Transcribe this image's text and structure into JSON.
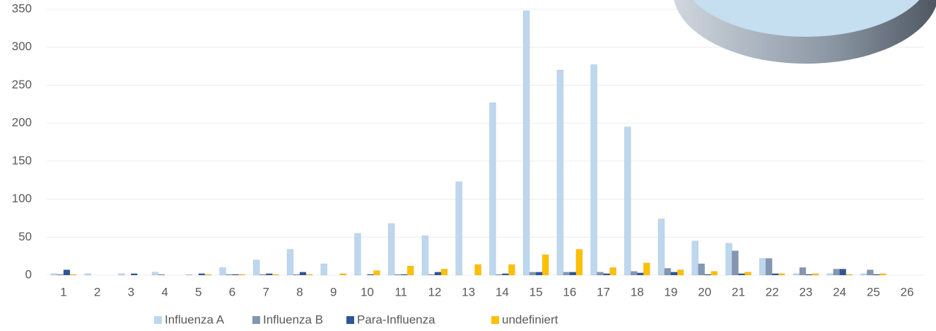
{
  "chart_data": {
    "type": "bar",
    "categories": [
      "1",
      "2",
      "3",
      "4",
      "5",
      "6",
      "7",
      "8",
      "9",
      "10",
      "11",
      "12",
      "13",
      "14",
      "15",
      "16",
      "17",
      "18",
      "19",
      "20",
      "21",
      "22",
      "23",
      "24",
      "25",
      "26"
    ],
    "series": [
      {
        "name": "Influenza A",
        "color": "#bdd7ee",
        "values": [
          2,
          2,
          2,
          4,
          1,
          10,
          20,
          34,
          15,
          55,
          68,
          52,
          123,
          227,
          348,
          270,
          277,
          195,
          74,
          45,
          42,
          22,
          2,
          2,
          2,
          0
        ]
      },
      {
        "name": "Influenza B",
        "color": "#8496b0",
        "values": [
          1,
          0,
          0,
          1,
          0,
          1,
          1,
          1,
          0,
          0,
          1,
          1,
          0,
          1,
          4,
          4,
          4,
          5,
          9,
          15,
          32,
          22,
          10,
          8,
          7,
          0
        ]
      },
      {
        "name": "Para-Influenza",
        "color": "#2f5597",
        "values": [
          7,
          0,
          2,
          0,
          2,
          1,
          2,
          4,
          0,
          1,
          1,
          4,
          0,
          2,
          4,
          4,
          2,
          3,
          4,
          1,
          2,
          2,
          1,
          8,
          1,
          0
        ]
      },
      {
        "name": "undefiniert",
        "color": "#ffc000",
        "values": [
          1,
          0,
          0,
          0,
          1,
          1,
          1,
          1,
          2,
          6,
          12,
          8,
          14,
          14,
          27,
          34,
          10,
          16,
          7,
          5,
          4,
          2,
          2,
          1,
          2,
          0
        ]
      }
    ],
    "ylim": [
      0,
      350
    ],
    "yticks": [
      0,
      50,
      100,
      150,
      200,
      250,
      300,
      350
    ],
    "grid": true
  }
}
